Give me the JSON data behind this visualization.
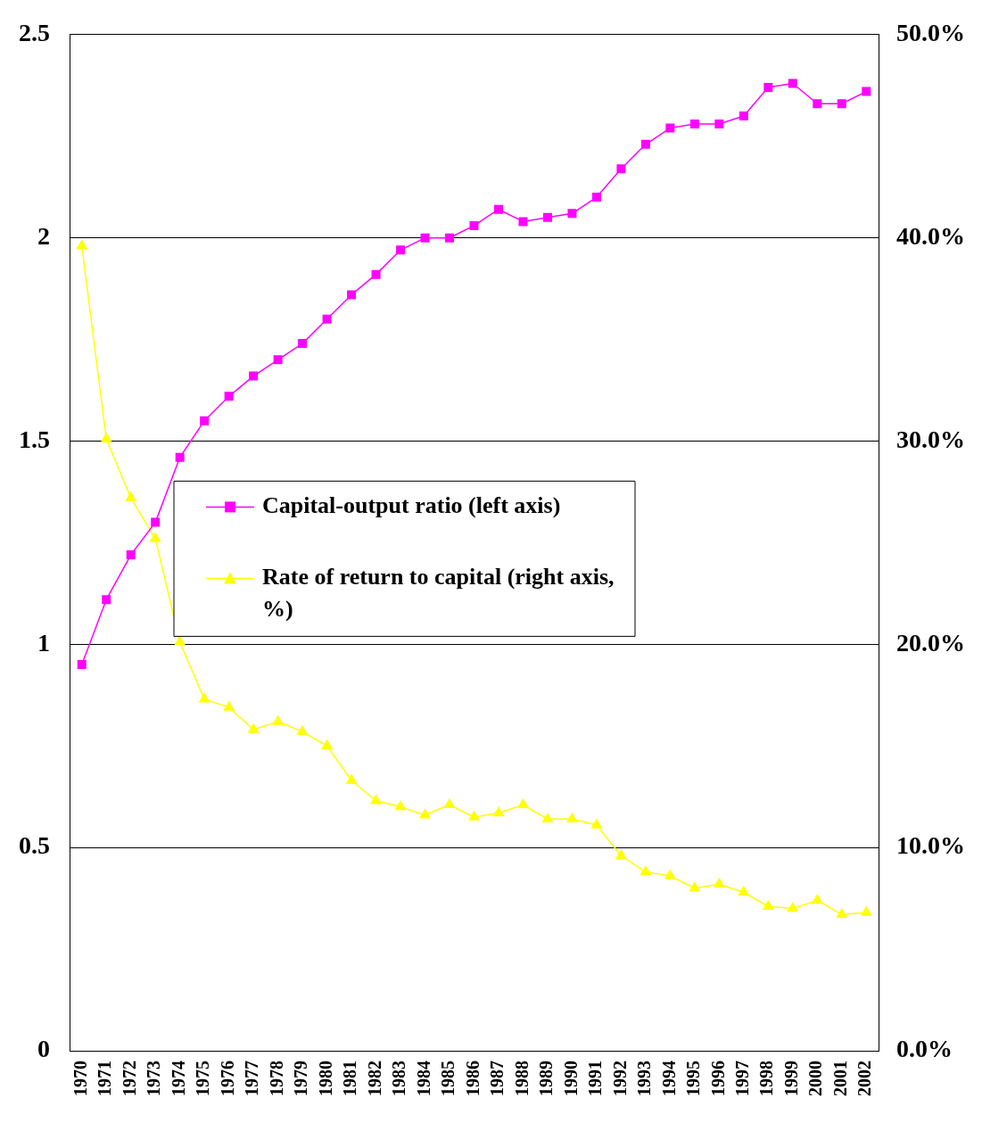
{
  "chart_data": {
    "type": "line",
    "categories": [
      "1970",
      "1971",
      "1972",
      "1973",
      "1974",
      "1975",
      "1976",
      "1977",
      "1978",
      "1979",
      "1980",
      "1981",
      "1982",
      "1983",
      "1984",
      "1985",
      "1986",
      "1987",
      "1988",
      "1989",
      "1990",
      "1991",
      "1992",
      "1993",
      "1994",
      "1995",
      "1996",
      "1997",
      "1998",
      "1999",
      "2000",
      "2001",
      "2002"
    ],
    "series": [
      {
        "name": "Capital-output ratio (left axis)",
        "color": "#ff00ff",
        "marker": "square",
        "values": [
          0.95,
          1.11,
          1.22,
          1.3,
          1.46,
          1.55,
          1.61,
          1.66,
          1.7,
          1.74,
          1.8,
          1.86,
          1.91,
          1.97,
          2.0,
          2.0,
          2.03,
          2.07,
          2.04,
          2.05,
          2.06,
          2.1,
          2.17,
          2.23,
          2.27,
          2.28,
          2.28,
          2.3,
          2.37,
          2.38,
          2.33,
          2.33,
          2.36
        ]
      },
      {
        "name": "Rate of return to capital (right axis, %)",
        "color": "#ffff00",
        "marker": "triangle",
        "axis": "y2",
        "values": [
          39.6,
          30.1,
          27.2,
          25.2,
          20.1,
          17.3,
          16.9,
          15.8,
          16.2,
          15.7,
          15.0,
          13.3,
          12.3,
          12.0,
          11.6,
          12.1,
          11.5,
          11.7,
          12.1,
          11.4,
          11.4,
          11.1,
          9.6,
          8.8,
          8.6,
          8.0,
          8.2,
          7.8,
          7.1,
          7.0,
          7.4,
          6.7,
          6.8
        ]
      }
    ],
    "ylim": [
      0,
      2.5
    ],
    "yticks": [
      0,
      0.5,
      1,
      1.5,
      2,
      2.5
    ],
    "y2lim": [
      0,
      50
    ],
    "y2ticks": [
      {
        "value": 0,
        "label": "0.0%"
      },
      {
        "value": 10,
        "label": "10.0%"
      },
      {
        "value": 20,
        "label": "20.0%"
      },
      {
        "value": 30,
        "label": "30.0%"
      },
      {
        "value": 40,
        "label": "40.0%"
      },
      {
        "value": 50,
        "label": "50.0%"
      }
    ],
    "grid": "y",
    "legend": "center",
    "line_style": "solid"
  }
}
